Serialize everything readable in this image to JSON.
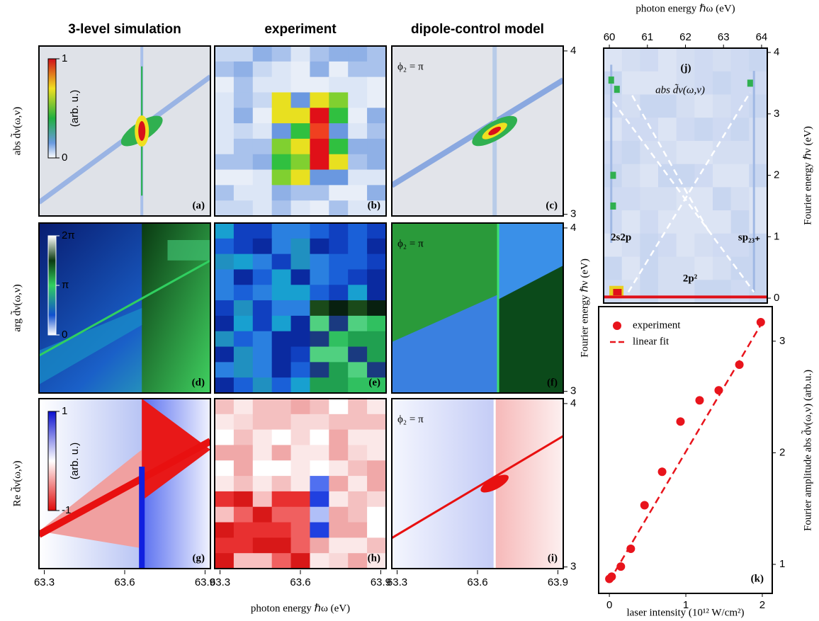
{
  "chart_data": [
    {
      "type": "heatmaps",
      "column_titles": [
        "3-level simulation",
        "experiment",
        "dipole-control model"
      ],
      "row_labels": [
        "abs d̃ν(ω,ν)",
        "arg d̃ν(ω,ν)",
        "Re d̃ν(ω,ν)"
      ],
      "panel_labels": [
        "(a)",
        "(b)",
        "(c)",
        "(d)",
        "(e)",
        "(f)",
        "(g)",
        "(h)",
        "(i)"
      ],
      "annotations": [
        "ϕ₂ = π",
        "ϕ₂ = π",
        "ϕ₂ = π"
      ],
      "colorbars": [
        {
          "clim": [
            0,
            1
          ],
          "ticks": [
            0,
            1
          ],
          "label": "(arb. u.)"
        },
        {
          "clim": [
            0,
            6.283
          ],
          "ticks": [
            {
              "value": 0,
              "label": "0"
            },
            {
              "value": 3.1416,
              "label": "π"
            },
            {
              "value": 6.283,
              "label": "2π"
            }
          ]
        },
        {
          "clim": [
            -1,
            1
          ],
          "ticks": [
            -1,
            1
          ],
          "label": "(arb. u.)"
        }
      ],
      "xlabel": "photon energy ℏω (eV)",
      "ylabel": "Fourier energy ℏν (eV)",
      "xlim": [
        63.28,
        63.92
      ],
      "xticks": [
        63.3,
        63.6,
        63.9
      ],
      "ylim": [
        2.99,
        4.03
      ],
      "yticks": [
        3,
        4
      ]
    },
    {
      "type": "heatmap",
      "panel_label": "(j)",
      "annotations": [
        "abs d̃ν(ω,ν)",
        "2s2p",
        "sp₂₃₊",
        "2p²"
      ],
      "xlabel": "photon energy ℏω (eV)",
      "ylabel": "Fourier energy ℏν (eV)",
      "xlim": [
        59.85,
        64.15
      ],
      "xticks": [
        60,
        61,
        62,
        63,
        64
      ],
      "ylim": [
        -0.08,
        4.07
      ],
      "yticks": [
        0,
        1,
        2,
        3,
        4
      ]
    },
    {
      "type": "scatter",
      "panel_label": "(k)",
      "xlabel": "laser intensity (10¹² W/cm²)",
      "ylabel": "Fourier amplitude  abs d̃ν(ω,ν) (arb.u.)",
      "xlim": [
        -0.14,
        2.13
      ],
      "xticks": [
        0,
        1,
        2
      ],
      "ylim": [
        0.74,
        3.31
      ],
      "yticks": [
        1,
        2,
        3
      ],
      "legend": "upper left",
      "series": [
        {
          "name": "experiment",
          "color": "#e8141c",
          "style": "markers",
          "x": [
            0.0,
            0.03,
            0.15,
            0.28,
            0.46,
            0.69,
            0.93,
            1.18,
            1.43,
            1.7,
            1.98
          ],
          "values": [
            0.87,
            0.89,
            0.98,
            1.14,
            1.53,
            1.83,
            2.28,
            2.47,
            2.56,
            2.79,
            3.17
          ]
        },
        {
          "name": "linear fit",
          "color": "#e8141c",
          "style": "dashed",
          "x": [
            0,
            2
          ],
          "values": [
            0.85,
            3.17
          ]
        }
      ]
    }
  ]
}
